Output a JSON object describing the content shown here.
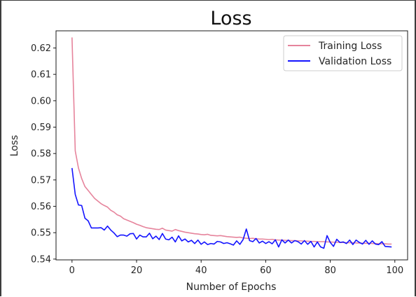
{
  "chart_data": {
    "type": "line",
    "title": "Loss",
    "xlabel": "Number of Epochs",
    "ylabel": "Loss",
    "xlim": [
      -4.95,
      103.95
    ],
    "ylim": [
      0.5397,
      0.6265
    ],
    "x_ticks": [
      0,
      20,
      40,
      60,
      80,
      100
    ],
    "y_ticks": [
      0.54,
      0.55,
      0.56,
      0.57,
      0.58,
      0.59,
      0.6,
      0.61,
      0.62
    ],
    "y_tick_labels": [
      "0.54",
      "0.55",
      "0.56",
      "0.57",
      "0.58",
      "0.59",
      "0.60",
      "0.61",
      "0.62"
    ],
    "x_tick_labels": [
      "0",
      "20",
      "40",
      "60",
      "80",
      "100"
    ],
    "grid": false,
    "legend_position": "upper right",
    "series": [
      {
        "name": "Training Loss",
        "color": "#e6849c",
        "x": [
          0,
          1,
          2,
          3,
          4,
          5,
          6,
          7,
          8,
          9,
          10,
          11,
          12,
          13,
          14,
          15,
          16,
          17,
          18,
          19,
          20,
          21,
          22,
          23,
          24,
          25,
          26,
          27,
          28,
          29,
          30,
          31,
          32,
          33,
          34,
          35,
          36,
          37,
          38,
          39,
          40,
          41,
          42,
          43,
          44,
          45,
          46,
          47,
          48,
          49,
          50,
          51,
          52,
          53,
          54,
          55,
          56,
          57,
          58,
          59,
          60,
          61,
          62,
          63,
          64,
          65,
          66,
          67,
          68,
          69,
          70,
          71,
          72,
          73,
          74,
          75,
          76,
          77,
          78,
          79,
          80,
          81,
          82,
          83,
          84,
          85,
          86,
          87,
          88,
          89,
          90,
          91,
          92,
          93,
          94,
          95,
          96,
          97,
          98,
          99
        ],
        "values": [
          0.624,
          0.581,
          0.5745,
          0.5705,
          0.5675,
          0.566,
          0.5645,
          0.563,
          0.562,
          0.561,
          0.5603,
          0.5597,
          0.5585,
          0.5578,
          0.5568,
          0.5563,
          0.5553,
          0.5548,
          0.5543,
          0.5538,
          0.5532,
          0.5528,
          0.5523,
          0.5519,
          0.5517,
          0.5515,
          0.5513,
          0.5512,
          0.5517,
          0.551,
          0.5508,
          0.5506,
          0.5512,
          0.5508,
          0.5505,
          0.5502,
          0.55,
          0.5498,
          0.5496,
          0.5495,
          0.5493,
          0.5492,
          0.5494,
          0.549,
          0.5489,
          0.5488,
          0.5489,
          0.5487,
          0.5485,
          0.5484,
          0.5483,
          0.5482,
          0.5483,
          0.548,
          0.5479,
          0.5478,
          0.5479,
          0.5477,
          0.5476,
          0.5476,
          0.5475,
          0.5474,
          0.5475,
          0.5473,
          0.5472,
          0.5472,
          0.5471,
          0.5471,
          0.547,
          0.547,
          0.5469,
          0.5469,
          0.5468,
          0.5468,
          0.5467,
          0.5467,
          0.5466,
          0.5466,
          0.5466,
          0.5465,
          0.5465,
          0.5464,
          0.5464,
          0.5463,
          0.5463,
          0.5462,
          0.5462,
          0.5462,
          0.5461,
          0.5461,
          0.546,
          0.546,
          0.546,
          0.5459,
          0.5459,
          0.5458,
          0.5458,
          0.5458,
          0.5457,
          0.5457
        ]
      },
      {
        "name": "Validation Loss",
        "color": "#1414ff",
        "x": [
          0,
          1,
          2,
          3,
          4,
          5,
          6,
          7,
          8,
          9,
          10,
          11,
          12,
          13,
          14,
          15,
          16,
          17,
          18,
          19,
          20,
          21,
          22,
          23,
          24,
          25,
          26,
          27,
          28,
          29,
          30,
          31,
          32,
          33,
          34,
          35,
          36,
          37,
          38,
          39,
          40,
          41,
          42,
          43,
          44,
          45,
          46,
          47,
          48,
          49,
          50,
          51,
          52,
          53,
          54,
          55,
          56,
          57,
          58,
          59,
          60,
          61,
          62,
          63,
          64,
          65,
          66,
          67,
          68,
          69,
          70,
          71,
          72,
          73,
          74,
          75,
          76,
          77,
          78,
          79,
          80,
          81,
          82,
          83,
          84,
          85,
          86,
          87,
          88,
          89,
          90,
          91,
          92,
          93,
          94,
          95,
          96,
          97,
          98,
          99
        ],
        "values": [
          0.5745,
          0.5645,
          0.5605,
          0.5603,
          0.5555,
          0.5545,
          0.5518,
          0.5518,
          0.5518,
          0.5519,
          0.551,
          0.5525,
          0.551,
          0.5499,
          0.5485,
          0.5491,
          0.5491,
          0.5487,
          0.5496,
          0.5497,
          0.5476,
          0.5491,
          0.5484,
          0.5484,
          0.5498,
          0.5477,
          0.5487,
          0.5474,
          0.5497,
          0.5476,
          0.5473,
          0.5483,
          0.5465,
          0.5488,
          0.5469,
          0.5476,
          0.5465,
          0.5471,
          0.5459,
          0.5472,
          0.5456,
          0.5465,
          0.5455,
          0.5459,
          0.5457,
          0.5467,
          0.5465,
          0.5459,
          0.5462,
          0.5458,
          0.5453,
          0.5469,
          0.5456,
          0.5474,
          0.5514,
          0.547,
          0.5466,
          0.5478,
          0.5461,
          0.5468,
          0.5459,
          0.5466,
          0.5458,
          0.5473,
          0.5446,
          0.5473,
          0.5461,
          0.5472,
          0.5461,
          0.547,
          0.5466,
          0.5457,
          0.547,
          0.5456,
          0.5467,
          0.5446,
          0.5465,
          0.5446,
          0.5441,
          0.5489,
          0.5463,
          0.5448,
          0.5475,
          0.5463,
          0.5465,
          0.5459,
          0.5472,
          0.5455,
          0.5472,
          0.5463,
          0.5457,
          0.5471,
          0.5456,
          0.5469,
          0.5457,
          0.5455,
          0.5466,
          0.5448,
          0.5447,
          0.5446
        ]
      }
    ]
  }
}
